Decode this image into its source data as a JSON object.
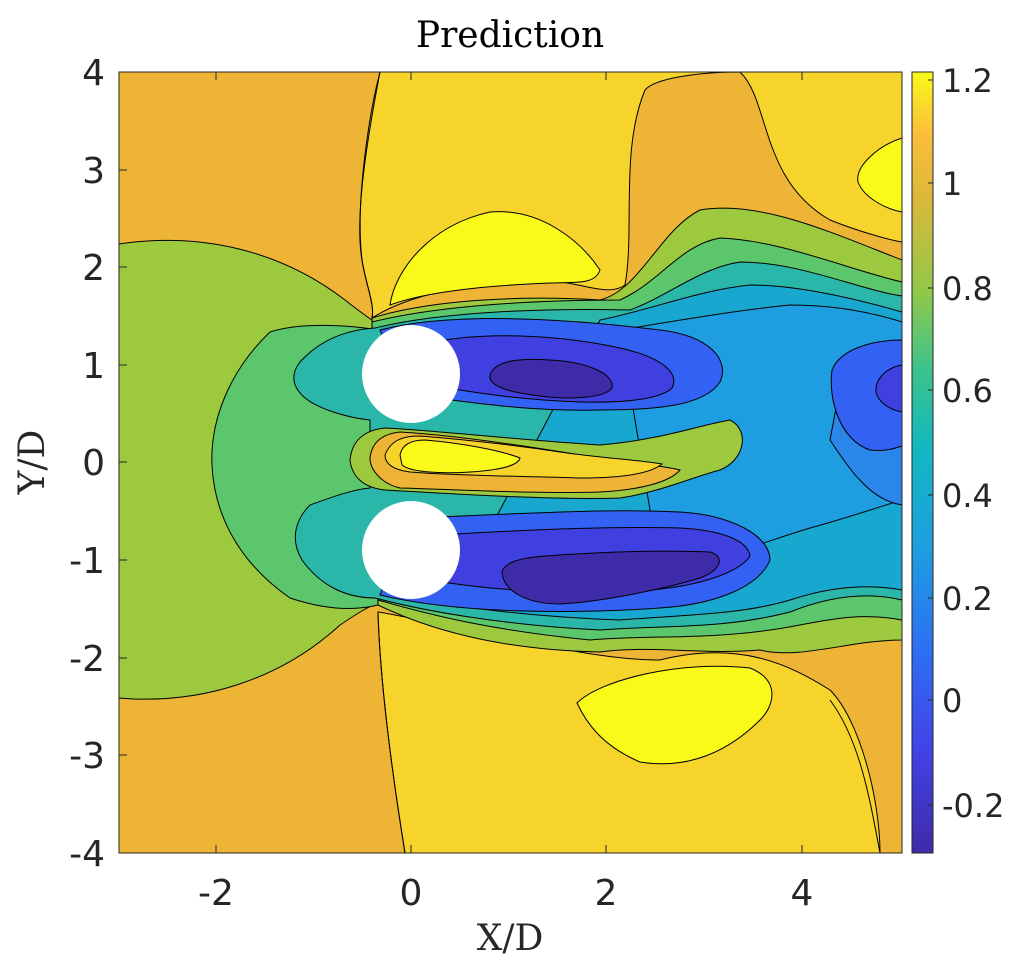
{
  "chart_data": {
    "type": "contour",
    "title": "Prediction",
    "xlabel": "X/D",
    "ylabel": "Y/D",
    "xlim": [
      -3,
      5
    ],
    "ylim": [
      -4,
      4
    ],
    "xticks": [
      "-2",
      "0",
      "2",
      "4"
    ],
    "yticks": [
      "4",
      "3",
      "2",
      "1",
      "0",
      "-1",
      "-2",
      "-3",
      "-4"
    ],
    "colorbar": {
      "range": [
        -0.3,
        1.22
      ],
      "ticks": [
        "1.2",
        "1",
        "0.8",
        "0.6",
        "0.4",
        "0.2",
        "0",
        "-0.2"
      ],
      "colormap": "parula"
    },
    "obstacles": [
      {
        "shape": "circle",
        "center_x": 0,
        "center_y": 0.9,
        "diameter": 1
      },
      {
        "shape": "circle",
        "center_x": 0,
        "center_y": -0.9,
        "diameter": 1
      }
    ],
    "level_colors": {
      "1.1": "#f9f91a",
      "1.0": "#f7d42c",
      "0.9": "#edb435",
      "0.7": "#9dc93e",
      "0.6": "#5bc66b",
      "0.5": "#2ab6a8",
      "0.35": "#18a8cf",
      "0.25": "#1e9ee0",
      "0.15": "#2b86ea",
      "0.05": "#3361f3",
      "-0.05": "#4040e0",
      "-0.2": "#3e2ba8"
    }
  }
}
